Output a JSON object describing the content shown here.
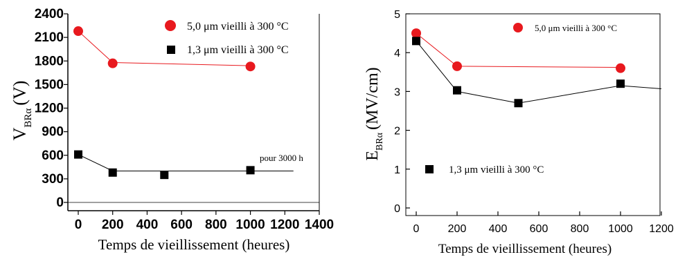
{
  "chart_data": [
    {
      "type": "scatter",
      "xlabel": "Temps de vieillissement (heures)",
      "ylabel": "V",
      "ylabel_sub": "BRα",
      "ylabel_unit": "(V)",
      "xlim": [
        0,
        1400
      ],
      "ylim": [
        0,
        2400
      ],
      "xticks": [
        0,
        200,
        400,
        600,
        800,
        1000,
        1200,
        1400
      ],
      "yticks": [
        0,
        300,
        600,
        900,
        1200,
        1500,
        1800,
        2100,
        2400
      ],
      "grid": false,
      "legend_position": "top-right",
      "series": [
        {
          "name": "5,0 μm vieilli à 300 °C",
          "color": "#e8191e",
          "marker": "circle",
          "x": [
            0,
            200,
            1000
          ],
          "y": [
            2180,
            1770,
            1730
          ],
          "line": {
            "x": [
              0,
              200,
              1000
            ],
            "y": [
              2180,
              1780,
              1740
            ]
          }
        },
        {
          "name": "1,3 μm vieilli à 300 °C",
          "color": "#000000",
          "marker": "square",
          "x": [
            0,
            200,
            500,
            1000
          ],
          "y": [
            610,
            380,
            350,
            410
          ],
          "line": {
            "x": [
              0,
              200,
              1250
            ],
            "y": [
              610,
              400,
              400
            ]
          }
        }
      ],
      "annotations": [
        {
          "text": "pour 3000 h",
          "x": 1230,
          "y": 520
        }
      ]
    },
    {
      "type": "scatter",
      "xlabel": "Temps de vieillissement (heures)",
      "ylabel": "E",
      "ylabel_sub": "BRα",
      "ylabel_unit": "(MV/cm)",
      "xlim": [
        -50,
        1200
      ],
      "ylim": [
        -0.2,
        5
      ],
      "xticks": [
        0,
        200,
        400,
        600,
        800,
        1000,
        1200
      ],
      "yticks": [
        0,
        1,
        2,
        3,
        4,
        5
      ],
      "grid": false,
      "legend_position": "top-right",
      "series": [
        {
          "name": "5,0 μm vieilli à 300 °C",
          "color": "#e8191e",
          "marker": "circle",
          "x": [
            0,
            200,
            1000
          ],
          "y": [
            4.5,
            3.65,
            3.6
          ],
          "line": {
            "x": [
              0,
              200,
              1000
            ],
            "y": [
              4.5,
              3.65,
              3.62
            ]
          }
        },
        {
          "name": "1,3 μm vieilli à 300 °C",
          "color": "#000000",
          "marker": "square",
          "x": [
            0,
            200,
            500,
            1000
          ],
          "y": [
            4.3,
            3.03,
            2.7,
            3.2
          ],
          "line": {
            "x": [
              0,
              200,
              500,
              1000,
              1200
            ],
            "y": [
              4.3,
              3.0,
              2.7,
              3.15,
              3.07
            ]
          }
        }
      ]
    }
  ]
}
